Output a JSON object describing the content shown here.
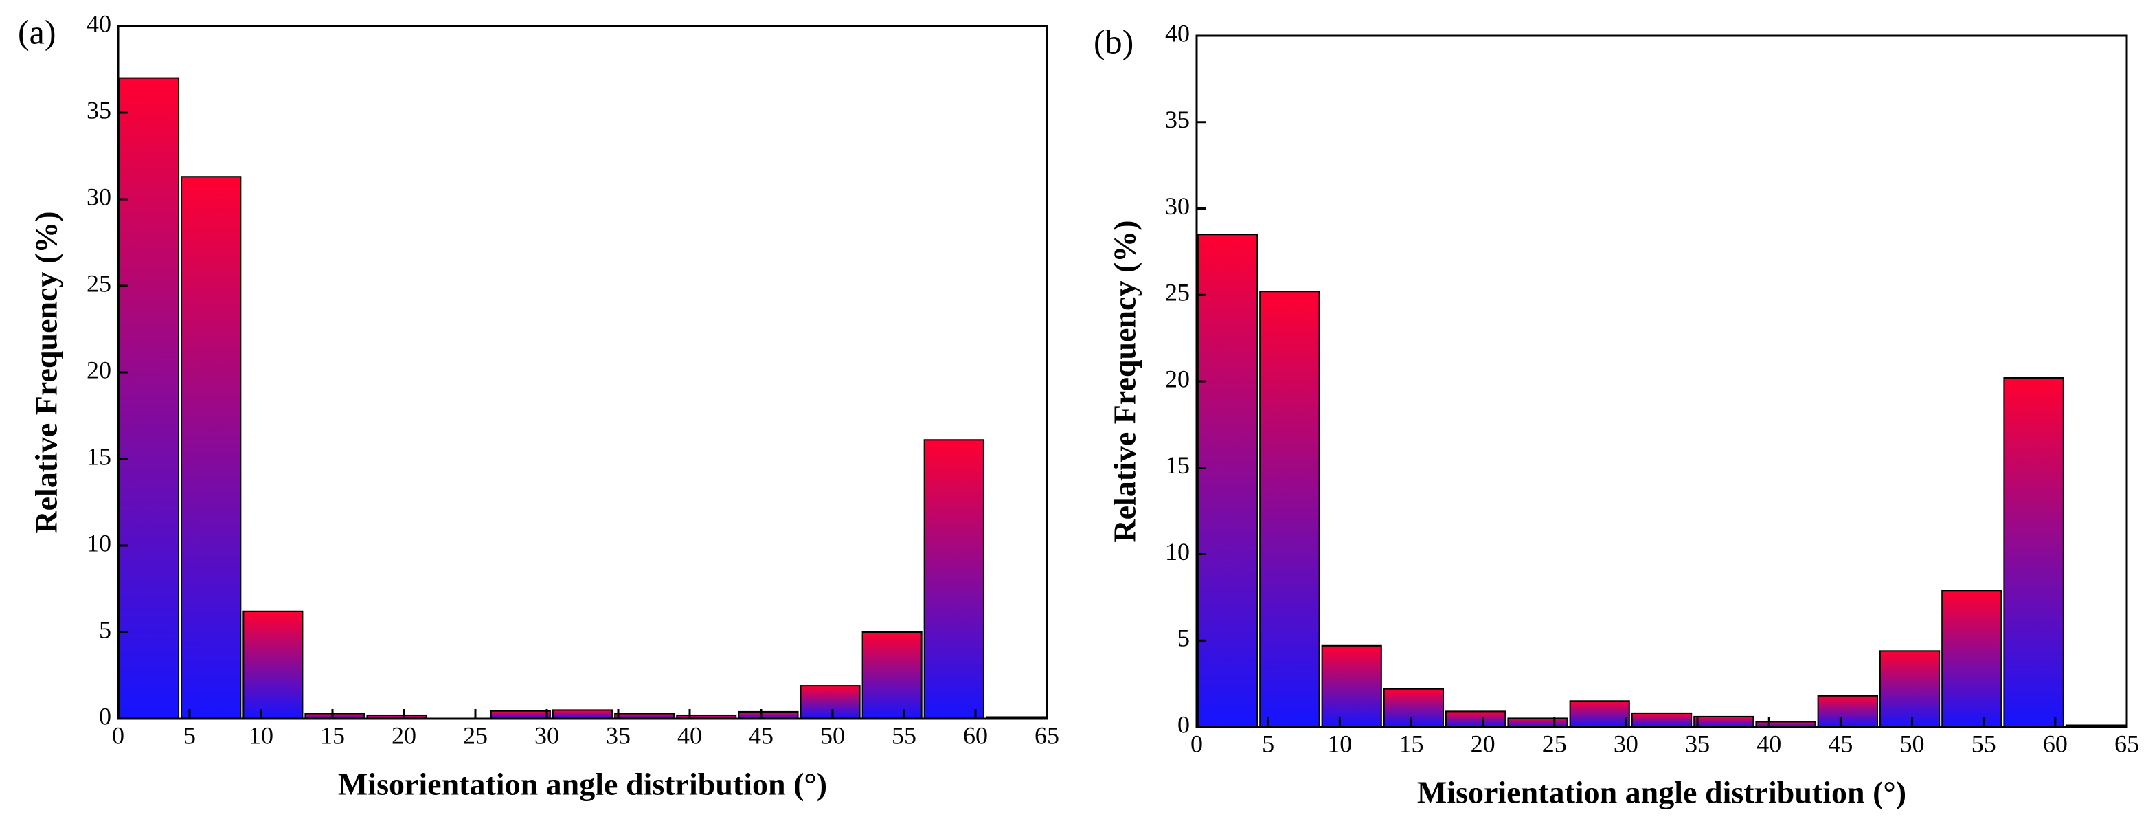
{
  "chart_data": [
    {
      "type": "histogram",
      "label": "(a)",
      "xlabel": "Misorientation angle distribution (°)",
      "ylabel": "Relative Frequency (%)",
      "bins": [
        0,
        4.33,
        8.67,
        13,
        17.33,
        21.67,
        26,
        30.33,
        34.67,
        39,
        43.33,
        47.67,
        52,
        56.33,
        60.67,
        65
      ],
      "values": [
        37,
        31.3,
        6.2,
        0.3,
        0.2,
        0,
        0.45,
        0.5,
        0.3,
        0.2,
        0.4,
        1.9,
        5.0,
        16.1,
        0.1
      ],
      "gradient": {
        "top": "#ff0030",
        "bottom": "#1414ff"
      },
      "xlim": [
        0,
        65
      ],
      "xticks": [
        0,
        5,
        10,
        15,
        20,
        25,
        30,
        35,
        40,
        45,
        50,
        55,
        60,
        65
      ],
      "ylim": [
        0,
        40
      ],
      "yticks": [
        0,
        5,
        10,
        15,
        20,
        25,
        30,
        35,
        40
      ]
    },
    {
      "type": "histogram",
      "label": "(b)",
      "xlabel": "Misorientation angle distribution (°)",
      "ylabel": "Relative Frequency (%)",
      "bins": [
        0,
        4.33,
        8.67,
        13,
        17.33,
        21.67,
        26,
        30.33,
        34.67,
        39,
        43.33,
        47.67,
        52,
        56.33,
        60.67,
        65
      ],
      "values": [
        28.5,
        25.2,
        4.7,
        2.2,
        0.9,
        0.5,
        1.5,
        0.8,
        0.6,
        0.3,
        1.8,
        4.4,
        7.9,
        20.2,
        0.1
      ],
      "gradient": {
        "top": "#ff0030",
        "bottom": "#1414ff"
      },
      "xlim": [
        0,
        65
      ],
      "xticks": [
        0,
        5,
        10,
        15,
        20,
        25,
        30,
        35,
        40,
        45,
        50,
        55,
        60,
        65
      ],
      "ylim": [
        0,
        40
      ],
      "yticks": [
        0,
        5,
        10,
        15,
        20,
        25,
        30,
        35,
        40
      ]
    }
  ]
}
